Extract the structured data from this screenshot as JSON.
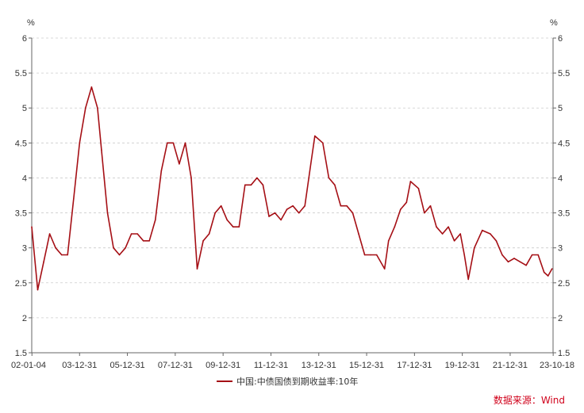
{
  "chart_data": {
    "type": "line",
    "title": "",
    "y_unit_left": "%",
    "y_unit_right": "%",
    "ylim": [
      1.5,
      6
    ],
    "y_ticks": [
      "1.5",
      "2",
      "2.5",
      "3",
      "3.5",
      "4",
      "4.5",
      "5",
      "5.5",
      "6"
    ],
    "x_ticks": [
      "02-01-04",
      "03-12-31",
      "05-12-31",
      "07-12-31",
      "09-12-31",
      "11-12-31",
      "13-12-31",
      "15-12-31",
      "17-12-31",
      "19-12-31",
      "21-12-31",
      "23-10-18"
    ],
    "grid": "horizontal dashed",
    "legend_position": "bottom",
    "series": [
      {
        "name": "中国:中债国债到期收益率:10年",
        "color": "#a50f15",
        "x": [
          "2002-01",
          "2002-04",
          "2002-07",
          "2002-10",
          "2003-01",
          "2003-04",
          "2003-07",
          "2003-10",
          "2004-01",
          "2004-04",
          "2004-07",
          "2004-10",
          "2004-12",
          "2005-03",
          "2005-06",
          "2005-09",
          "2005-12",
          "2006-03",
          "2006-06",
          "2006-09",
          "2006-12",
          "2007-03",
          "2007-06",
          "2007-09",
          "2007-12",
          "2008-03",
          "2008-06",
          "2008-09",
          "2008-12",
          "2009-03",
          "2009-06",
          "2009-09",
          "2009-12",
          "2010-03",
          "2010-06",
          "2010-09",
          "2010-12",
          "2011-03",
          "2011-06",
          "2011-09",
          "2011-12",
          "2012-03",
          "2012-06",
          "2012-09",
          "2012-12",
          "2013-03",
          "2013-06",
          "2013-09",
          "2013-11",
          "2014-03",
          "2014-06",
          "2014-09",
          "2014-12",
          "2015-03",
          "2015-06",
          "2015-09",
          "2015-12",
          "2016-03",
          "2016-06",
          "2016-10",
          "2016-12",
          "2017-03",
          "2017-06",
          "2017-09",
          "2017-11",
          "2018-03",
          "2018-06",
          "2018-09",
          "2018-12",
          "2019-03",
          "2019-06",
          "2019-09",
          "2019-12",
          "2020-02",
          "2020-04",
          "2020-07",
          "2020-11",
          "2021-03",
          "2021-06",
          "2021-09",
          "2021-12",
          "2022-03",
          "2022-06",
          "2022-09",
          "2022-12",
          "2023-03",
          "2023-06",
          "2023-08",
          "2023-10"
        ],
        "values": [
          3.3,
          2.4,
          2.8,
          3.2,
          3.0,
          2.9,
          2.9,
          3.7,
          4.5,
          5.0,
          5.3,
          5.0,
          4.4,
          3.5,
          3.0,
          2.9,
          3.0,
          3.2,
          3.2,
          3.1,
          3.1,
          3.4,
          4.1,
          4.5,
          4.5,
          4.2,
          4.5,
          4.0,
          2.7,
          3.1,
          3.2,
          3.5,
          3.6,
          3.4,
          3.3,
          3.3,
          3.9,
          3.9,
          4.0,
          3.9,
          3.45,
          3.5,
          3.4,
          3.55,
          3.6,
          3.5,
          3.6,
          4.2,
          4.6,
          4.5,
          4.0,
          3.9,
          3.6,
          3.6,
          3.5,
          3.2,
          2.9,
          2.9,
          2.9,
          2.7,
          3.1,
          3.3,
          3.55,
          3.65,
          3.95,
          3.85,
          3.5,
          3.6,
          3.3,
          3.2,
          3.3,
          3.1,
          3.2,
          2.9,
          2.55,
          3.0,
          3.25,
          3.2,
          3.1,
          2.9,
          2.8,
          2.85,
          2.8,
          2.75,
          2.9,
          2.9,
          2.65,
          2.6,
          2.7
        ]
      }
    ]
  },
  "legend": {
    "label": "中国:中债国债到期收益率:10年"
  },
  "source": "数据来源：Wind"
}
